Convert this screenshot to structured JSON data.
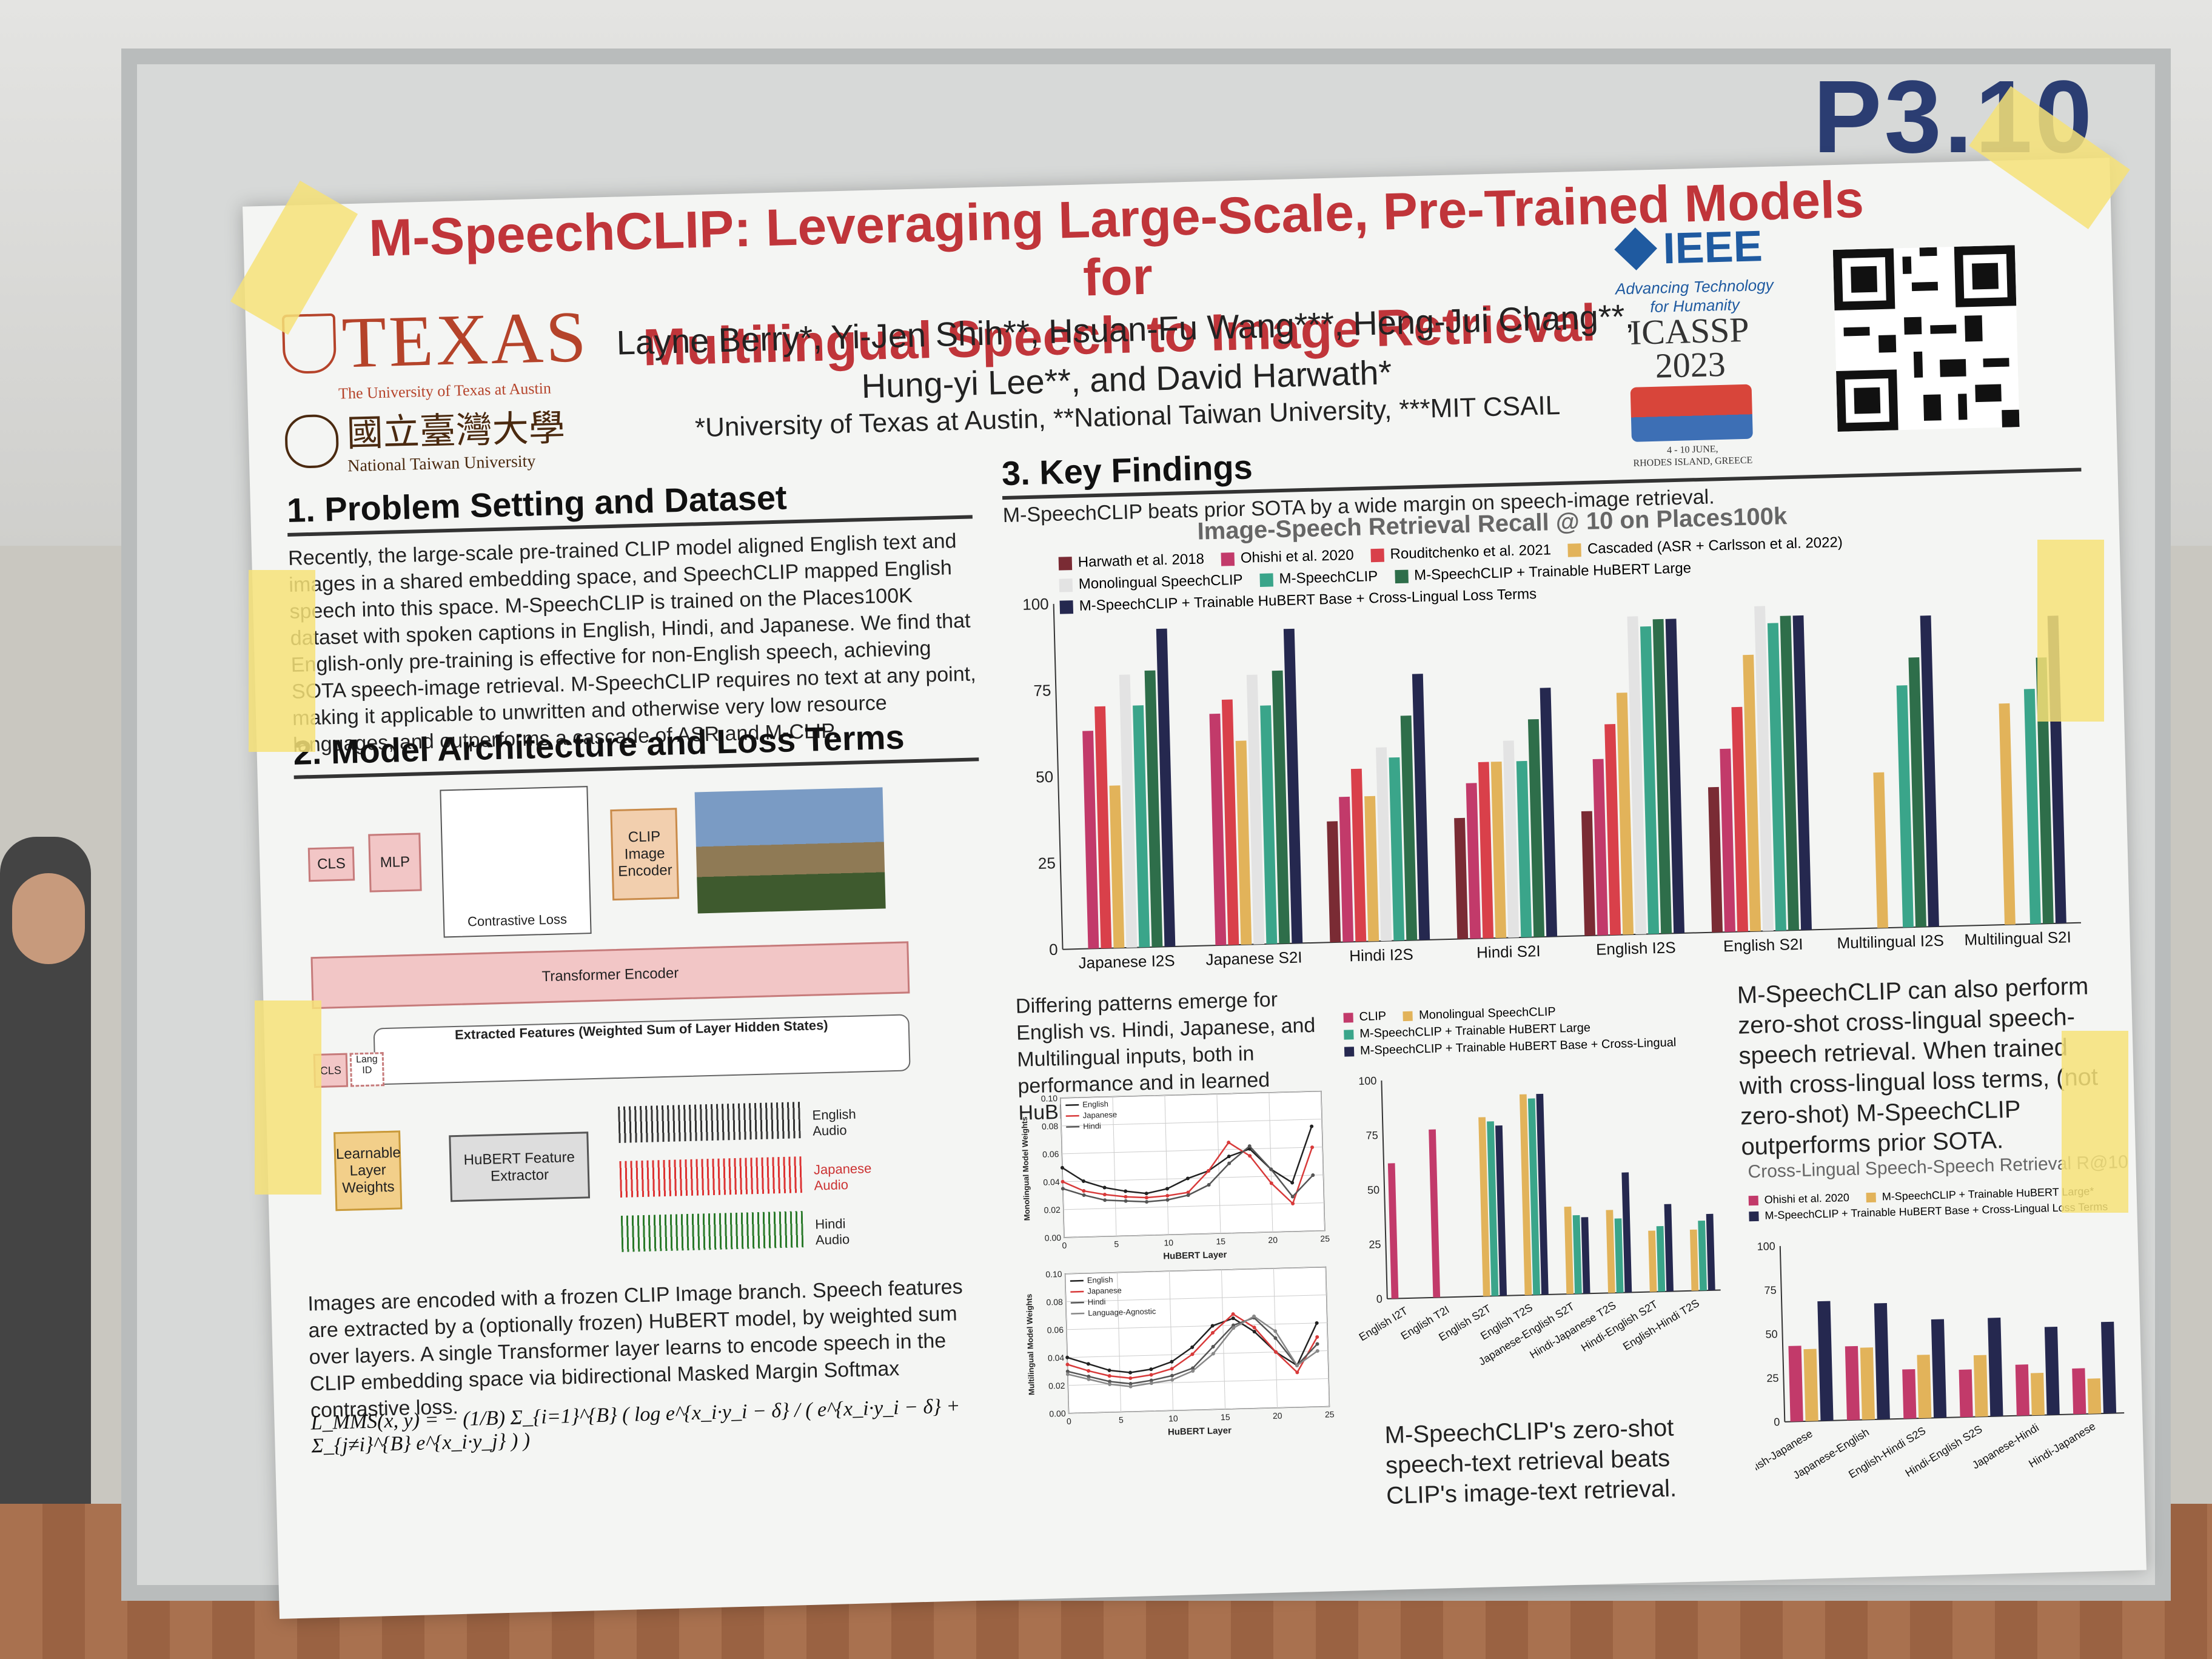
{
  "booth": {
    "label": "P3.10"
  },
  "header": {
    "title_line1": "M-SpeechCLIP: Leveraging Large-Scale, Pre-Trained Models for",
    "title_line2": "Multilingual Speech to Image Retrieval",
    "authors_line1": "Layne Berry*, Yi-Jen Shih**, Hsuan-Fu Wang***, Heng-Jui Chang**,",
    "authors_line2": "Hung-yi Lee**, and David Harwath*",
    "affiliations": "*University of Texas at Austin, **National Taiwan University, ***MIT CSAIL"
  },
  "logos": {
    "texas": "TEXAS",
    "texas_sub": "The University of Texas at Austin",
    "ntu_chinese": "國立臺灣大學",
    "ntu": "National Taiwan University",
    "ieee": "IEEE",
    "ieee_sub1": "Advancing Technology",
    "ieee_sub2": "for Humanity",
    "icassp": "ICASSP",
    "icassp_year": "2023",
    "icassp_dates": "4 - 10 JUNE,",
    "icassp_place": "RHODES ISLAND, GREECE"
  },
  "section1": {
    "heading": "1. Problem Setting and Dataset",
    "text": "Recently, the large-scale pre-trained CLIP model aligned English text and images in a shared embedding space, and SpeechCLIP mapped English speech into this space. M-SpeechCLIP is trained on the Places100K dataset with spoken captions in English, Hindi, and Japanese. We find that English-only pre-training is effective for non-English speech, achieving SOTA speech-image retrieval. M-SpeechCLIP requires no text at any point, making it applicable to unwritten and otherwise very low resource languages, and outperforms a cascade of ASR and M-CLIP."
  },
  "section2": {
    "heading": "2. Model Architecture and Loss Terms",
    "cls": "CLS",
    "mlp": "MLP",
    "contrastive": "Contrastive Loss",
    "clip_encoder": "CLIP Image Encoder",
    "transformer": "Transformer Encoder",
    "extracted": "Extracted Features (Weighted Sum of Layer Hidden States)",
    "lang_id": "Lang ID",
    "learnable": "Learnable Layer Weights",
    "hubert": "HuBERT Feature Extractor",
    "audio_en": "English Audio",
    "audio_ja": "Japanese Audio",
    "audio_hi": "Hindi Audio",
    "caption": "Images are encoded with a frozen CLIP Image branch. Speech features are extracted by a (optionally frozen) HuBERT model, by weighted sum over layers. A single Transformer layer learns to encode speech in the CLIP embedding space via bidirectional Masked Margin Softmax contrastive loss.",
    "formula": "L_MMS(x, y) = − (1/B) Σ_{i=1}^{B} ( log  e^{x_i·y_i − δ} / ( e^{x_i·y_i − δ} + Σ_{j≠i}^{B} e^{x_i·y_j} ) )"
  },
  "section3": {
    "heading": "3. Key Findings",
    "finding1": "M-SpeechCLIP beats prior SOTA by a wide margin on speech-image retrieval.",
    "finding2": "Differing patterns emerge for English vs. Hindi, Japanese, and Multilingual inputs, both in performance and in learned HuBERT Large layer weights.",
    "finding3": "M-SpeechCLIP can also perform zero-shot cross-lingual speech-speech retrieval. When trained with cross-lingual loss terms, (not zero-shot) M-SpeechCLIP outperforms prior SOTA.",
    "finding4": "M-SpeechCLIP's zero-shot speech-text retrieval beats CLIP's image-text retrieval."
  },
  "chart_data": [
    {
      "type": "bar",
      "title": "Image-Speech Retrieval Recall @ 10 on Places100k",
      "ylim": [
        0,
        100
      ],
      "yticks": [
        0,
        25,
        50,
        75,
        100
      ],
      "categories": [
        "Japanese I2S",
        "Japanese S2I",
        "Hindi I2S",
        "Hindi S2I",
        "English I2S",
        "English S2I",
        "Multilingual I2S",
        "Multilingual S2I"
      ],
      "series": [
        {
          "name": "Harwath et al. 2018",
          "color": "#7a2b34",
          "values": [
            null,
            null,
            35,
            35,
            36,
            42,
            null,
            null
          ]
        },
        {
          "name": "Ohishi et al. 2020",
          "color": "#c23a6a",
          "values": [
            63,
            67,
            42,
            45,
            51,
            53,
            null,
            null
          ]
        },
        {
          "name": "Rouditchenko et al. 2021",
          "color": "#d9404a",
          "values": [
            70,
            71,
            50,
            51,
            61,
            65,
            null,
            null
          ]
        },
        {
          "name": "Cascaded (ASR + Carlsson et al. 2022)",
          "color": "#e2b35a",
          "values": [
            47,
            59,
            42,
            51,
            70,
            80,
            45,
            64
          ]
        },
        {
          "name": "Monolingual SpeechCLIP",
          "color": "#e3e3e3",
          "values": [
            79,
            78,
            56,
            57,
            92,
            94,
            null,
            null
          ]
        },
        {
          "name": "M-SpeechCLIP",
          "color": "#3aa58a",
          "values": [
            70,
            69,
            53,
            51,
            89,
            89,
            70,
            68
          ]
        },
        {
          "name": "M-SpeechCLIP + Trainable HuBERT Large",
          "color": "#2e6e4a",
          "values": [
            80,
            79,
            65,
            63,
            91,
            91,
            78,
            77
          ]
        },
        {
          "name": "M-SpeechCLIP + Trainable HuBERT Base + Cross-Lingual Loss Terms",
          "color": "#25284f",
          "values": [
            92,
            91,
            77,
            72,
            91,
            91,
            90,
            89
          ]
        }
      ]
    },
    {
      "type": "line",
      "ylabel": "Monolingual Model Weights",
      "xlabel": "HuBERT Layer",
      "xlim": [
        0,
        25
      ],
      "ylim": [
        0,
        0.1
      ],
      "yticks": [
        "0.00",
        "0.02",
        "0.04",
        "0.06",
        "0.08",
        "0.10"
      ],
      "xticks": [
        0,
        5,
        10,
        15,
        20,
        25
      ],
      "series": [
        {
          "name": "English",
          "color": "#222222",
          "x": [
            0,
            2,
            4,
            6,
            8,
            10,
            12,
            14,
            16,
            18,
            20,
            22,
            24
          ],
          "y": [
            0.05,
            0.04,
            0.035,
            0.032,
            0.03,
            0.033,
            0.04,
            0.045,
            0.055,
            0.06,
            0.045,
            0.035,
            0.075
          ]
        },
        {
          "name": "Japanese",
          "color": "#d83a3a",
          "x": [
            0,
            2,
            4,
            6,
            8,
            10,
            12,
            14,
            16,
            18,
            20,
            22,
            24
          ],
          "y": [
            0.04,
            0.033,
            0.03,
            0.028,
            0.027,
            0.028,
            0.03,
            0.045,
            0.065,
            0.055,
            0.035,
            0.02,
            0.06
          ]
        },
        {
          "name": "Hindi",
          "color": "#555555",
          "x": [
            0,
            2,
            4,
            6,
            8,
            10,
            12,
            14,
            16,
            18,
            20,
            22,
            24
          ],
          "y": [
            0.035,
            0.03,
            0.026,
            0.025,
            0.024,
            0.025,
            0.028,
            0.035,
            0.05,
            0.062,
            0.045,
            0.025,
            0.04
          ]
        }
      ]
    },
    {
      "type": "line",
      "ylabel": "Multilingual Model Weights",
      "xlabel": "HuBERT Layer",
      "xlim": [
        0,
        25
      ],
      "ylim": [
        0,
        0.1
      ],
      "yticks": [
        "0.00",
        "0.02",
        "0.04",
        "0.06",
        "0.08",
        "0.10"
      ],
      "xticks": [
        0,
        5,
        10,
        15,
        20,
        25
      ],
      "series": [
        {
          "name": "English",
          "color": "#222222",
          "x": [
            0,
            2,
            4,
            6,
            8,
            10,
            12,
            14,
            16,
            18,
            20,
            22,
            24
          ],
          "y": [
            0.04,
            0.035,
            0.03,
            0.028,
            0.03,
            0.035,
            0.045,
            0.06,
            0.065,
            0.055,
            0.04,
            0.03,
            0.06
          ]
        },
        {
          "name": "Japanese",
          "color": "#d83a3a",
          "x": [
            0,
            2,
            4,
            6,
            8,
            10,
            12,
            14,
            16,
            18,
            20,
            22,
            24
          ],
          "y": [
            0.035,
            0.03,
            0.026,
            0.024,
            0.026,
            0.03,
            0.04,
            0.055,
            0.068,
            0.058,
            0.04,
            0.025,
            0.05
          ]
        },
        {
          "name": "Hindi",
          "color": "#555555",
          "x": [
            0,
            2,
            4,
            6,
            8,
            10,
            12,
            14,
            16,
            18,
            20,
            22,
            24
          ],
          "y": [
            0.03,
            0.026,
            0.022,
            0.02,
            0.022,
            0.025,
            0.03,
            0.045,
            0.06,
            0.065,
            0.05,
            0.03,
            0.045
          ]
        },
        {
          "name": "Language-Agnostic",
          "color": "#888888",
          "x": [
            0,
            2,
            4,
            6,
            8,
            10,
            12,
            14,
            16,
            18,
            20,
            22,
            24
          ],
          "y": [
            0.028,
            0.024,
            0.02,
            0.018,
            0.02,
            0.022,
            0.028,
            0.04,
            0.058,
            0.066,
            0.055,
            0.03,
            0.04
          ]
        }
      ]
    },
    {
      "type": "bar",
      "ylim": [
        0,
        100
      ],
      "yticks": [
        0,
        25,
        50,
        75,
        100
      ],
      "categories": [
        "English I2T",
        "English T2I",
        "English S2T",
        "English T2S",
        "Japanese-English S2T",
        "Hindi-Japanese T2S",
        "Hindi-English S2T",
        "English-Hindi T2S"
      ],
      "series": [
        {
          "name": "CLIP",
          "color": "#c23a6a",
          "values": [
            62,
            77,
            null,
            null,
            null,
            null,
            null,
            null
          ]
        },
        {
          "name": "Monolingual SpeechCLIP",
          "color": "#e2b35a",
          "values": [
            null,
            null,
            82,
            92,
            40,
            38,
            28,
            28
          ]
        },
        {
          "name": "M-SpeechCLIP + Trainable HuBERT Large",
          "color": "#3aa58a",
          "values": [
            null,
            null,
            80,
            90,
            36,
            34,
            30,
            32
          ]
        },
        {
          "name": "M-SpeechCLIP + Trainable HuBERT Base + Cross-Lingual",
          "color": "#25284f",
          "values": [
            null,
            null,
            78,
            92,
            35,
            55,
            40,
            35
          ]
        }
      ]
    },
    {
      "type": "bar",
      "title": "Cross-Lingual Speech-Speech Retrieval R@10",
      "ylim": [
        0,
        100
      ],
      "yticks": [
        0,
        25,
        50,
        75,
        100
      ],
      "categories": [
        "English-Japanese",
        "Japanese-English",
        "English-Hindi S2S",
        "Hindi-English S2S",
        "Japanese-Hindi",
        "Hindi-Japanese"
      ],
      "series": [
        {
          "name": "Ohishi et al. 2020",
          "color": "#c23a6a",
          "values": [
            43,
            42,
            28,
            27,
            29,
            26
          ]
        },
        {
          "name": "M-SpeechCLIP + Trainable HuBERT Large*",
          "color": "#e2b35a",
          "values": [
            41,
            41,
            36,
            35,
            24,
            20
          ]
        },
        {
          "name": "M-SpeechCLIP + Trainable HuBERT Base + Cross-Lingual Loss Terms",
          "color": "#25284f",
          "values": [
            68,
            66,
            56,
            56,
            50,
            52
          ]
        }
      ]
    }
  ]
}
